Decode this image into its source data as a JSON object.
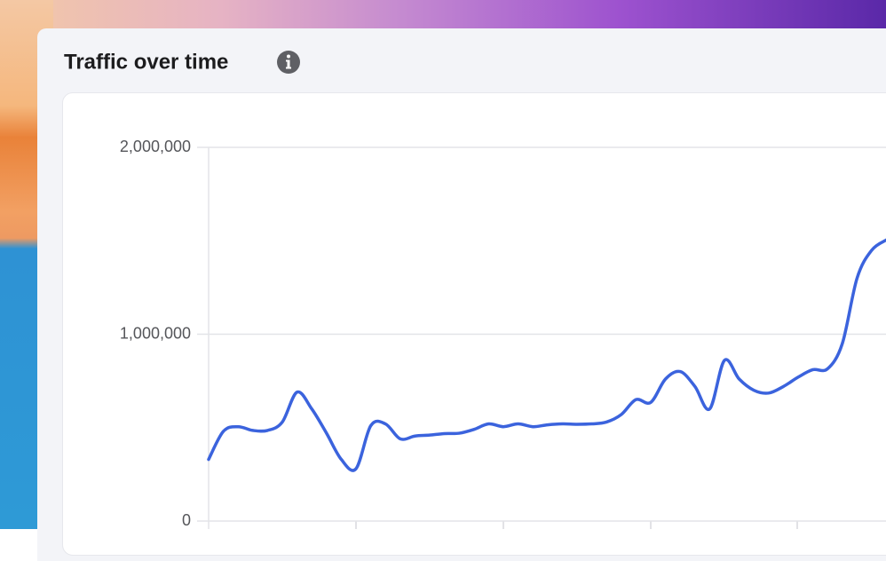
{
  "chart_data": {
    "type": "line",
    "title": "Traffic over time",
    "series": [
      {
        "color": "#3b63dd",
        "values": [
          330000,
          480000,
          505000,
          485000,
          485000,
          530000,
          690000,
          600000,
          470000,
          330000,
          280000,
          510000,
          520000,
          440000,
          455000,
          460000,
          468000,
          470000,
          490000,
          520000,
          505000,
          520000,
          505000,
          515000,
          520000,
          518000,
          520000,
          530000,
          570000,
          650000,
          635000,
          760000,
          800000,
          720000,
          600000,
          860000,
          760000,
          700000,
          685000,
          720000,
          770000,
          810000,
          815000,
          950000,
          1300000,
          1450000,
          1505000
        ]
      }
    ],
    "ylim": [
      0,
      2000000
    ],
    "yticks": [
      0,
      {
        "value": 1000000,
        "label": "1,000,000"
      },
      {
        "value": 2000000,
        "label": "2,000,000"
      }
    ],
    "grid": true
  }
}
